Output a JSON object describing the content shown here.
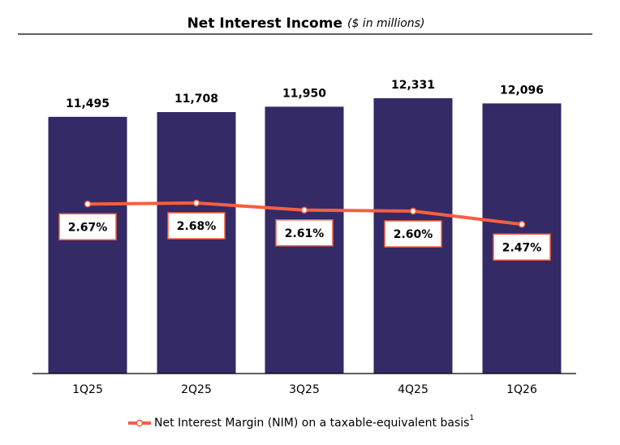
{
  "chart_data": {
    "type": "bar",
    "title": "Net Interest Income",
    "subtitle": "($ in millions)",
    "categories": [
      "1Q25",
      "2Q25",
      "3Q25",
      "4Q25",
      "1Q26"
    ],
    "ylim": [
      0,
      14000
    ],
    "y2lim": [
      1.0,
      4.08
    ],
    "series": [
      {
        "type": "bar",
        "color": "#342a66",
        "values": [
          11495,
          11708,
          11950,
          12331,
          12096
        ],
        "value_labels": [
          "11,495",
          "11,708",
          "11,950",
          "12,331",
          "12,096"
        ]
      },
      {
        "type": "line",
        "axis": "y2",
        "color": "#f4603f",
        "name": "Net Interest Margin (NIM) on a taxable-equivalent basis",
        "footnote_marker": "1",
        "values": [
          2.67,
          2.68,
          2.61,
          2.6,
          2.47
        ],
        "value_labels": [
          "2.67%",
          "2.68%",
          "2.61%",
          "2.60%",
          "2.47%"
        ]
      }
    ]
  }
}
